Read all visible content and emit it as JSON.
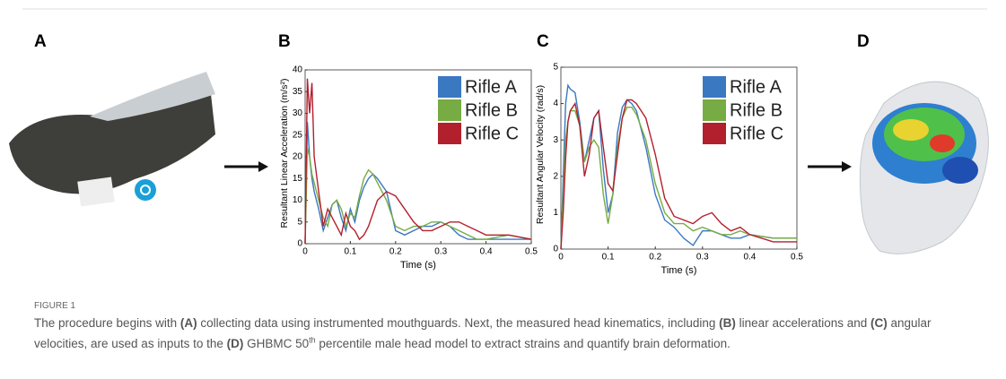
{
  "panels": [
    "A",
    "B",
    "C",
    "D"
  ],
  "chart_data": [
    {
      "type": "line",
      "ylabel": "Resultant Linear Acceleration (m/s²)",
      "xlabel": "Time (s)",
      "x": [
        0,
        0.005,
        0.01,
        0.015,
        0.02,
        0.03,
        0.04,
        0.05,
        0.06,
        0.07,
        0.08,
        0.09,
        0.1,
        0.11,
        0.12,
        0.13,
        0.14,
        0.15,
        0.16,
        0.18,
        0.2,
        0.22,
        0.24,
        0.26,
        0.28,
        0.3,
        0.32,
        0.34,
        0.36,
        0.38,
        0.4,
        0.45,
        0.5
      ],
      "xlim": [
        0,
        0.5
      ],
      "xticks": [
        0,
        0.1,
        0.2,
        0.3,
        0.4,
        0.5
      ],
      "ylim": [
        0,
        40
      ],
      "yticks": [
        0,
        5,
        10,
        15,
        20,
        25,
        30,
        35,
        40
      ],
      "series": [
        {
          "name": "Rifle A",
          "color": "#3a78c2",
          "values": [
            0,
            28,
            20,
            15,
            12,
            8,
            3,
            6,
            9,
            10,
            6,
            3,
            8,
            5,
            10,
            13,
            15,
            16,
            15,
            12,
            3,
            2,
            3,
            4,
            4,
            5,
            4,
            2,
            1,
            1,
            1,
            1,
            1
          ]
        },
        {
          "name": "Rifle B",
          "color": "#77ab43",
          "values": [
            0,
            22,
            20,
            16,
            14,
            10,
            6,
            4,
            9,
            10,
            8,
            4,
            7,
            6,
            11,
            15,
            17,
            16,
            14,
            10,
            4,
            3,
            4,
            4,
            5,
            5,
            4,
            3,
            2,
            1,
            1,
            2,
            1
          ]
        },
        {
          "name": "Rifle C",
          "color": "#b3202d",
          "values": [
            0,
            38,
            30,
            37,
            20,
            12,
            4,
            8,
            6,
            4,
            2,
            7,
            4,
            3,
            1,
            2,
            4,
            7,
            10,
            12,
            11,
            8,
            5,
            3,
            3,
            4,
            5,
            5,
            4,
            3,
            2,
            2,
            1
          ]
        }
      ]
    },
    {
      "type": "line",
      "ylabel": "Resultant Angular Velocity (rad/s)",
      "xlabel": "Time (s)",
      "x": [
        0,
        0.005,
        0.01,
        0.015,
        0.02,
        0.03,
        0.04,
        0.05,
        0.06,
        0.07,
        0.08,
        0.09,
        0.1,
        0.11,
        0.12,
        0.13,
        0.14,
        0.15,
        0.16,
        0.18,
        0.2,
        0.22,
        0.24,
        0.26,
        0.28,
        0.3,
        0.32,
        0.34,
        0.36,
        0.38,
        0.4,
        0.45,
        0.5
      ],
      "xlim": [
        0,
        0.5
      ],
      "xticks": [
        0,
        0.1,
        0.2,
        0.3,
        0.4,
        0.5
      ],
      "ylim": [
        0,
        5
      ],
      "yticks": [
        0,
        1,
        2,
        3,
        4,
        5
      ],
      "series": [
        {
          "name": "Rifle A",
          "color": "#3a78c2",
          "values": [
            0,
            2,
            4,
            4.5,
            4.4,
            4.3,
            3.5,
            2.4,
            3,
            3.6,
            3.8,
            2.2,
            1,
            1.5,
            3.2,
            3.9,
            4.1,
            4,
            3.8,
            2.8,
            1.5,
            0.8,
            0.6,
            0.3,
            0.1,
            0.5,
            0.5,
            0.4,
            0.3,
            0.3,
            0.4,
            0.3,
            0.3
          ]
        },
        {
          "name": "Rifle B",
          "color": "#77ab43",
          "values": [
            0,
            1.5,
            3,
            3.5,
            3.8,
            3.8,
            3.4,
            2.4,
            2.8,
            3,
            2.8,
            1.5,
            0.7,
            1.5,
            2.8,
            3.6,
            3.9,
            3.9,
            3.7,
            3,
            1.8,
            1,
            0.7,
            0.7,
            0.5,
            0.6,
            0.5,
            0.4,
            0.4,
            0.5,
            0.4,
            0.3,
            0.3
          ]
        },
        {
          "name": "Rifle C",
          "color": "#b3202d",
          "values": [
            0,
            1,
            2.5,
            3.5,
            3.8,
            4,
            3.4,
            2,
            2.6,
            3.6,
            3.8,
            2.8,
            1.8,
            1.6,
            2.6,
            3.6,
            4.1,
            4.1,
            4,
            3.6,
            2.6,
            1.4,
            0.9,
            0.8,
            0.7,
            0.9,
            1,
            0.7,
            0.5,
            0.6,
            0.4,
            0.2,
            0.2
          ]
        }
      ]
    }
  ],
  "caption": {
    "label": "FIGURE 1",
    "segments": [
      "The procedure begins with ",
      "(A)",
      " collecting data using instrumented mouthguards. Next, the measured head kinematics, including ",
      "(B)",
      " linear accelerations and ",
      "(C)",
      " angular velocities, are used as inputs to the ",
      "(D)",
      " GHBMC 50",
      "th",
      " percentile male head model to extract strains and quantify brain deformation."
    ]
  }
}
